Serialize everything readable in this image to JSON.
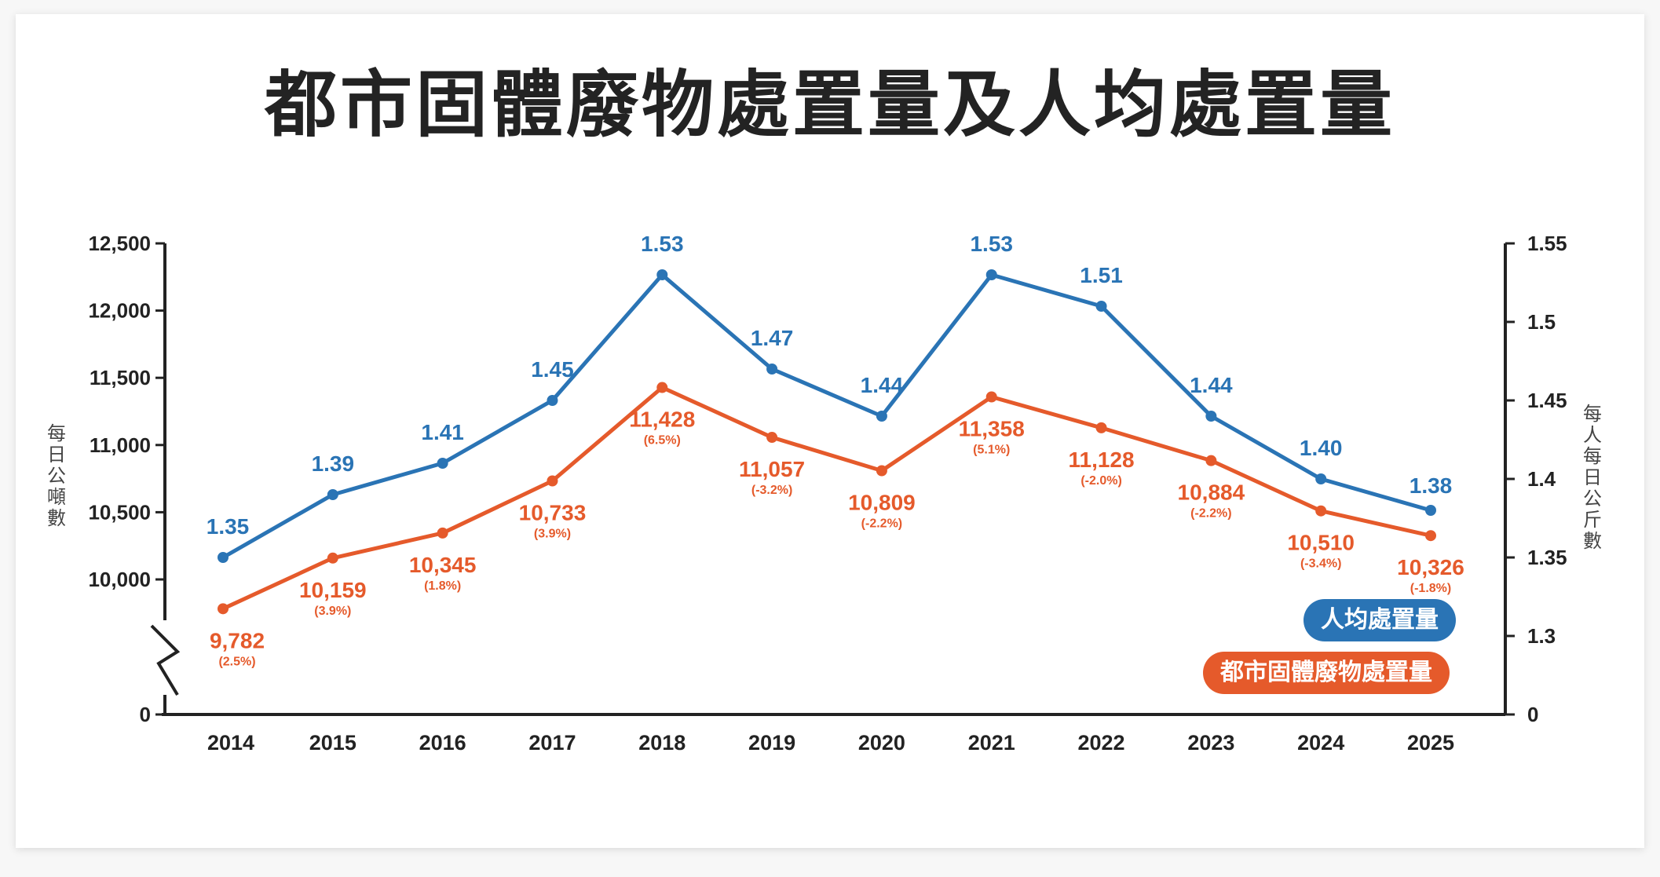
{
  "chart_data": {
    "type": "line",
    "title": "都市固體廢物處置量及人均處置量",
    "categories": [
      "2014",
      "2015",
      "2016",
      "2017",
      "2018",
      "2019",
      "2020",
      "2021",
      "2022",
      "2023",
      "2024",
      "2025"
    ],
    "y_left_label": "每日公噸數",
    "y_right_label": "每人每日公斤數",
    "y_left_ticks": [
      "12,500",
      "12,000",
      "11,500",
      "11,000",
      "10,500",
      "10,000",
      "0"
    ],
    "y_right_ticks": [
      "1.55",
      "1.5",
      "1.45",
      "1.4",
      "1.35",
      "1.3",
      "0"
    ],
    "y_left_range": [
      10000,
      12500
    ],
    "y_right_range": [
      1.3,
      1.55
    ],
    "axis_break": true,
    "series": [
      {
        "name": "人均處置量",
        "axis": "right",
        "color": "#2a74b5",
        "values": [
          1.35,
          1.39,
          1.41,
          1.45,
          1.53,
          1.47,
          1.44,
          1.53,
          1.51,
          1.44,
          1.4,
          1.38
        ],
        "labels": [
          "1.35",
          "1.39",
          "1.41",
          "1.45",
          "1.53",
          "1.47",
          "1.44",
          "1.53",
          "1.51",
          "1.44",
          "1.40",
          "1.38"
        ]
      },
      {
        "name": "都市固體廢物處置量",
        "axis": "left",
        "color": "#e55a2b",
        "values": [
          9782,
          10159,
          10345,
          10733,
          11428,
          11057,
          10809,
          11358,
          11128,
          10884,
          10510,
          10326
        ],
        "labels": [
          "9,782",
          "10,159",
          "10,345",
          "10,733",
          "11,428",
          "11,057",
          "10,809",
          "11,358",
          "11,128",
          "10,884",
          "10,510",
          "10,326"
        ],
        "changes": [
          "(2.5%)",
          "(3.9%)",
          "(1.8%)",
          "(3.9%)",
          "(6.5%)",
          "(-3.2%)",
          "(-2.2%)",
          "(5.1%)",
          "(-2.0%)",
          "(-2.2%)",
          "(-3.4%)",
          "(-1.8%)"
        ]
      }
    ],
    "legend": [
      {
        "label": "人均處置量",
        "color": "#2a74b5"
      },
      {
        "label": "都市固體廢物處置量",
        "color": "#e55a2b"
      }
    ],
    "legend_position": "bottom-right",
    "grid": false
  }
}
